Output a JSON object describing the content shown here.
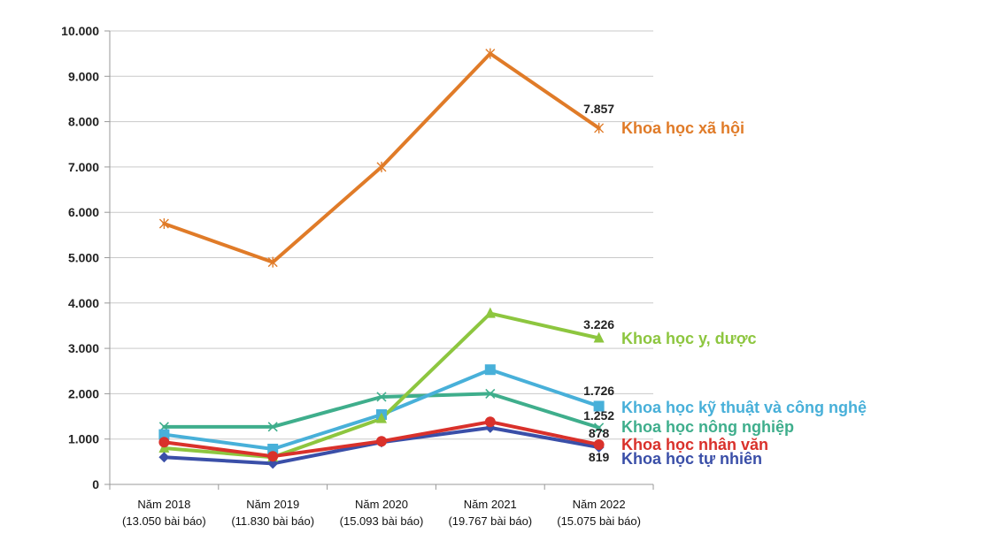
{
  "chart_data": {
    "type": "line",
    "categories": [
      [
        "Năm 2018",
        "(13.050 bài báo)"
      ],
      [
        "Năm 2019",
        "(11.830 bài báo)"
      ],
      [
        "Năm 2020",
        "(15.093 bài báo)"
      ],
      [
        "Năm 2021",
        "(19.767 bài báo)"
      ],
      [
        "Năm 2022",
        "(15.075 bài báo)"
      ]
    ],
    "ylim": [
      0,
      10000
    ],
    "y_ticks": [
      {
        "value": 0,
        "label": "0"
      },
      {
        "value": 1000,
        "label": "1.000"
      },
      {
        "value": 2000,
        "label": "2.000"
      },
      {
        "value": 3000,
        "label": "3.000"
      },
      {
        "value": 4000,
        "label": "4.000"
      },
      {
        "value": 5000,
        "label": "5.000"
      },
      {
        "value": 6000,
        "label": "6.000"
      },
      {
        "value": 7000,
        "label": "7.000"
      },
      {
        "value": 8000,
        "label": "8.000"
      },
      {
        "value": 9000,
        "label": "9.000"
      },
      {
        "value": 10000,
        "label": "10.000"
      }
    ],
    "grid": true,
    "series": [
      {
        "name": "Khoa học xã hội",
        "color": "#E07B28",
        "marker": "star",
        "values": [
          5750,
          4900,
          7000,
          9500,
          7857
        ],
        "end_label": "7.857"
      },
      {
        "name": "Khoa học y, dược",
        "color": "#8DC63F",
        "marker": "triangle",
        "values": [
          800,
          600,
          1450,
          3770,
          3226
        ],
        "end_label": "3.226"
      },
      {
        "name": "Khoa học kỹ thuật và công nghệ",
        "color": "#48B0D9",
        "marker": "square",
        "values": [
          1100,
          780,
          1540,
          2530,
          1726
        ],
        "end_label": "1.726"
      },
      {
        "name": "Khoa học nông nghiệp",
        "color": "#3FAE8C",
        "marker": "x",
        "values": [
          1270,
          1270,
          1930,
          2000,
          1252
        ],
        "end_label": "1.252"
      },
      {
        "name": "Khoa học nhân văn",
        "color": "#D9312B",
        "marker": "circle",
        "values": [
          930,
          620,
          950,
          1380,
          878
        ],
        "end_label": "878"
      },
      {
        "name": "Khoa học tự nhiên",
        "color": "#3A4FA8",
        "marker": "diamond",
        "values": [
          600,
          460,
          930,
          1250,
          819
        ],
        "end_label": "819"
      }
    ]
  }
}
